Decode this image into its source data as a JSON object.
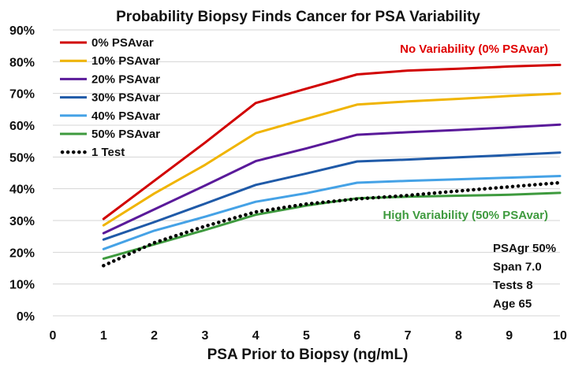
{
  "chart_data": {
    "type": "line",
    "title": "Probability Biopsy Finds Cancer for PSA Variability",
    "xlabel": "PSA Prior to Biopsy (ng/mL)",
    "ylabel": "",
    "xlim": [
      0,
      10
    ],
    "ylim": [
      0,
      90
    ],
    "x_ticks": [
      0,
      1,
      2,
      3,
      4,
      5,
      6,
      7,
      8,
      9,
      10
    ],
    "y_ticks": [
      0,
      10,
      20,
      30,
      40,
      50,
      60,
      70,
      80,
      90
    ],
    "y_tick_labels": [
      "0%",
      "10%",
      "20%",
      "30%",
      "40%",
      "50%",
      "60%",
      "70%",
      "80%",
      "90%"
    ],
    "grid": true,
    "legend_position": "top-left",
    "x": [
      1,
      2,
      3,
      4,
      5,
      6,
      7,
      8,
      9,
      10
    ],
    "series": [
      {
        "name": "0% PSAvar",
        "color": "#d10000",
        "style": "solid",
        "values": [
          30.5,
          42.5,
          54.5,
          67,
          71.5,
          76,
          77.2,
          77.8,
          78.5,
          79
        ]
      },
      {
        "name": "10% PSAvar",
        "color": "#f0b400",
        "style": "solid",
        "values": [
          28.5,
          38.5,
          47.5,
          57.5,
          62,
          66.5,
          67.5,
          68.3,
          69.2,
          70
        ]
      },
      {
        "name": "20% PSAvar",
        "color": "#5a1a9a",
        "style": "solid",
        "values": [
          26,
          33.5,
          41,
          48.7,
          52.7,
          57,
          57.8,
          58.5,
          59.3,
          60.2
        ]
      },
      {
        "name": "30% PSAvar",
        "color": "#1f5aa8",
        "style": "solid",
        "values": [
          24,
          29.5,
          35.3,
          41.2,
          44.8,
          48.6,
          49.2,
          49.9,
          50.6,
          51.4
        ]
      },
      {
        "name": "40% PSAvar",
        "color": "#45a2e6",
        "style": "solid",
        "values": [
          21,
          26.8,
          31.2,
          35.9,
          38.6,
          41.9,
          42.5,
          43,
          43.5,
          44
        ]
      },
      {
        "name": "50% PSAvar",
        "color": "#3e9a3e",
        "style": "solid",
        "values": [
          18,
          22.5,
          27,
          31.8,
          34.7,
          37,
          37.5,
          37.8,
          38.1,
          38.7
        ]
      },
      {
        "name": "1 Test",
        "color": "#000000",
        "style": "dotted",
        "values": [
          15.8,
          23,
          28.2,
          32.7,
          35.2,
          36.8,
          37.9,
          39.3,
          40.6,
          41.9
        ]
      }
    ],
    "annotations": [
      {
        "text": "No Variability (0% PSAvar)",
        "color": "#e00000"
      },
      {
        "text": "High Variability (50% PSAvar)",
        "color": "#3e9a3e"
      }
    ],
    "parameters": [
      "PSAgr 50%",
      "Span 7.0",
      "Tests 8",
      "Age 65"
    ]
  }
}
